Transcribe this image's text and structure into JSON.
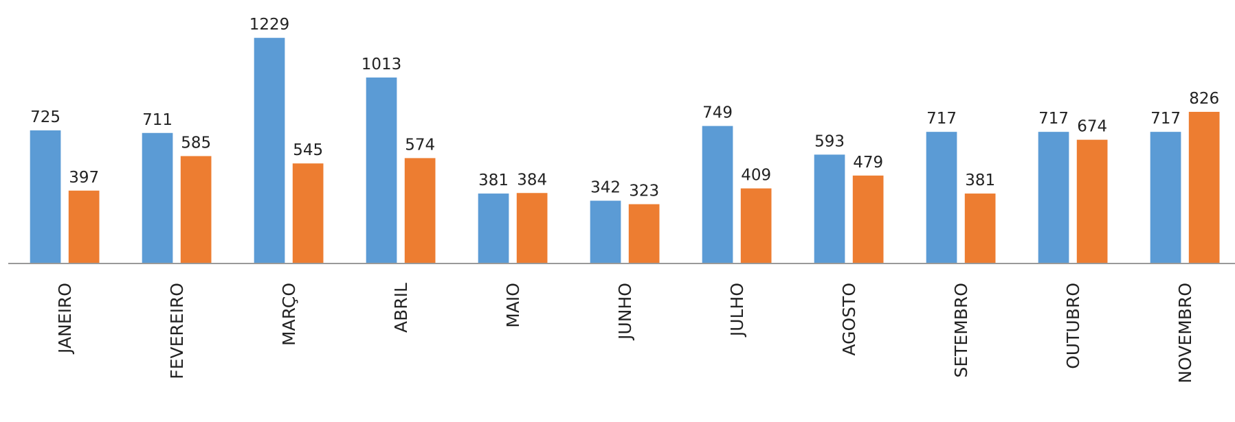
{
  "chart_data": {
    "type": "bar",
    "categories": [
      "JANEIRO",
      "FEVEREIRO",
      "MARÇO",
      "ABRIL",
      "MAIO",
      "JUNHO",
      "JULHO",
      "AGOSTO",
      "SETEMBRO",
      "OUTUBRO",
      "NOVEMBRO"
    ],
    "series": [
      {
        "color": "#5b9bd5",
        "values": [
          725,
          711,
          1229,
          1013,
          381,
          342,
          749,
          593,
          717,
          717,
          717
        ]
      },
      {
        "color": "#ed7d31",
        "values": [
          397,
          585,
          545,
          574,
          384,
          323,
          409,
          479,
          381,
          674,
          826
        ]
      }
    ],
    "ylim": [
      0,
      1400
    ]
  }
}
